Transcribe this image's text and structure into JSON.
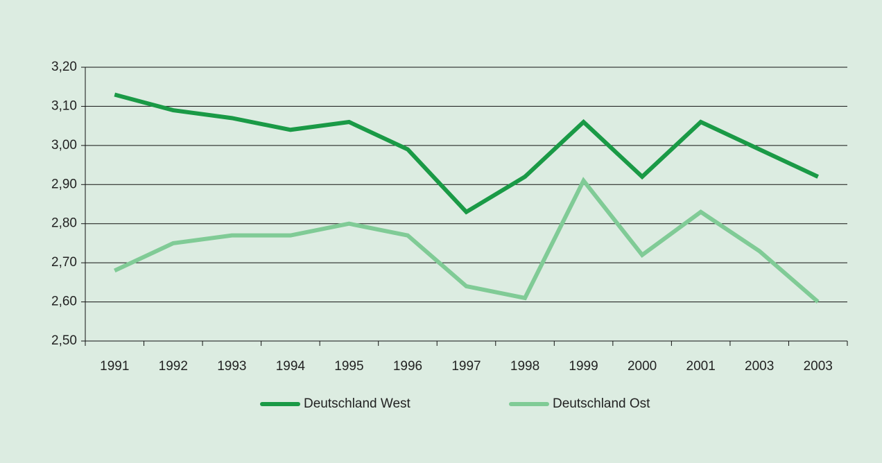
{
  "chart_data": {
    "type": "line",
    "categories": [
      "1991",
      "1992",
      "1993",
      "1994",
      "1995",
      "1996",
      "1997",
      "1998",
      "1999",
      "2000",
      "2001",
      "2003",
      "2003"
    ],
    "series": [
      {
        "name": "Deutschland West",
        "color": "#1a9a46",
        "values": [
          3.13,
          3.09,
          3.07,
          3.04,
          3.06,
          2.99,
          2.83,
          2.92,
          3.06,
          2.92,
          3.06,
          2.99,
          2.92
        ]
      },
      {
        "name": "Deutschland Ost",
        "color": "#80cb96",
        "values": [
          2.68,
          2.75,
          2.77,
          2.77,
          2.8,
          2.77,
          2.64,
          2.61,
          2.91,
          2.72,
          2.83,
          2.73,
          2.6
        ]
      }
    ],
    "ylim": [
      2.5,
      3.2
    ],
    "yticks": [
      {
        "value": 2.5,
        "label": "2,50"
      },
      {
        "value": 2.6,
        "label": "2,60"
      },
      {
        "value": 2.7,
        "label": "2,70"
      },
      {
        "value": 2.8,
        "label": "2,80"
      },
      {
        "value": 2.9,
        "label": "2,90"
      },
      {
        "value": 3.0,
        "label": "3,00"
      },
      {
        "value": 3.1,
        "label": "3,10"
      },
      {
        "value": 3.2,
        "label": "3,20"
      }
    ],
    "grid": true,
    "legend": "bottom"
  }
}
